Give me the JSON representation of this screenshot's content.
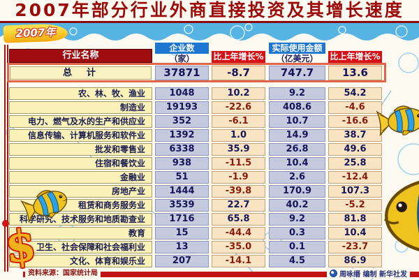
{
  "title": "2007年部分行业外商直接投资及其增长速度",
  "badge": "2007年",
  "table": {
    "headers": {
      "industry": "行业名称",
      "enterprises": "企业数",
      "enterprises_unit": "（家）",
      "growth1": "比上年增长%",
      "amount": "实际使用金额",
      "amount_unit": "（亿美元）",
      "growth2": "比上年增长%"
    },
    "total": {
      "name": "总　计",
      "enterprises": "37871",
      "growth1": "-8.7",
      "amount": "747.7",
      "growth2": "13.6"
    },
    "rows": [
      {
        "name": "农、林、牧、渔业",
        "enterprises": "1048",
        "growth1": "10.2",
        "amount": "9.2",
        "growth2": "54.2"
      },
      {
        "name": "制造业",
        "enterprises": "19193",
        "growth1": "-22.6",
        "amount": "408.6",
        "growth2": "-4.6"
      },
      {
        "name": "电力、燃气及水的生产和供应业",
        "enterprises": "352",
        "growth1": "-6.1",
        "amount": "10.7",
        "growth2": "-16.6"
      },
      {
        "name": "信息传输、计算机服务和软件业",
        "enterprises": "1392",
        "growth1": "1.0",
        "amount": "14.9",
        "growth2": "38.7"
      },
      {
        "name": "批发和零售业",
        "enterprises": "6338",
        "growth1": "35.9",
        "amount": "26.8",
        "grow2_note": "",
        "growth2": "49.6"
      },
      {
        "name": "住宿和餐饮业",
        "enterprises": "938",
        "growth1": "-11.5",
        "amount": "10.4",
        "growth2": "25.8"
      },
      {
        "name": "金融业",
        "enterprises": "51",
        "growth1": "-1.9",
        "amount": "2.6",
        "growth2": "-12.4"
      },
      {
        "name": "房地产业",
        "enterprises": "1444",
        "growth1": "-39.8",
        "amount": "170.9",
        "growth2": "107.3"
      },
      {
        "name": "租赁和商务服务业",
        "enterprises": "3539",
        "growth1": "22.7",
        "amount": "40.2",
        "growth2": "-5.2"
      },
      {
        "name": "科学研究、技术服务和地质勘查业",
        "enterprises": "1716",
        "growth1": "65.8",
        "amount": "9.2",
        "growth2": "81.8"
      },
      {
        "name": "教育",
        "enterprises": "15",
        "growth1": "-44.4",
        "amount": "0.3",
        "growth2": "10.4"
      },
      {
        "name": "卫生、社会保障和社会福利业",
        "enterprises": "13",
        "growth1": "-35.0",
        "amount": "0.1",
        "growth2": "-23.7"
      },
      {
        "name": "文化、体育和娱乐业",
        "enterprises": "207",
        "growth1": "-14.1",
        "amount": "4.5",
        "growth2": "86.9"
      }
    ]
  },
  "footer": {
    "source": "资料来源：国家统计局",
    "credit": "周咏缗 编制 新华社发"
  },
  "icons": {
    "fish": "tropical-fish-icon",
    "dollar": "dollar-sign-icon",
    "logo": "xinhua-logo-icon",
    "bubbles": "bubble-circles-decoration"
  },
  "colors": {
    "title_red": "#9c0a0a",
    "header_dark_red": "#9e0c10",
    "header_blue": "#1d76cf",
    "header_red": "#d41217",
    "band_blue": "#56b3e2",
    "name_bg": "#f8f2b8",
    "count_bg": "#c5cade",
    "growth_bg": "#f8e3c2",
    "total_border_orange": "#e2654a",
    "positive_navy": "#15155a",
    "negative_maroon": "#8b1a0e",
    "bar_red": "#c41111",
    "dollar_yellow": "#f0b21a"
  },
  "chart_data": {
    "type": "table",
    "title": "2007年部分行业外商直接投资及其增长速度",
    "columns": [
      "行业名称",
      "企业数（家）",
      "比上年增长%",
      "实际使用金额（亿美元）",
      "比上年增长%"
    ],
    "total_row": [
      "总计",
      37871,
      -8.7,
      747.7,
      13.6
    ],
    "rows": [
      [
        "农、林、牧、渔业",
        1048,
        10.2,
        9.2,
        54.2
      ],
      [
        "制造业",
        19193,
        -22.6,
        408.6,
        -4.6
      ],
      [
        "电力、燃气及水的生产和供应业",
        352,
        -6.1,
        10.7,
        -16.6
      ],
      [
        "信息传输、计算机服务和软件业",
        1392,
        1.0,
        14.9,
        38.7
      ],
      [
        "批发和零售业",
        6338,
        35.9,
        26.8,
        49.6
      ],
      [
        "住宿和餐饮业",
        938,
        -11.5,
        10.4,
        25.8
      ],
      [
        "金融业",
        51,
        -1.9,
        2.6,
        -12.4
      ],
      [
        "房地产业",
        1444,
        -39.8,
        170.9,
        107.3
      ],
      [
        "租赁和商务服务业",
        3539,
        22.7,
        40.2,
        -5.2
      ],
      [
        "科学研究、技术服务和地质勘查业",
        1716,
        65.8,
        9.2,
        81.8
      ],
      [
        "教育",
        15,
        -44.4,
        0.3,
        10.4
      ],
      [
        "卫生、社会保障和社会福利业",
        13,
        -35.0,
        0.1,
        -23.7
      ],
      [
        "文化、体育和娱乐业",
        207,
        -14.1,
        4.5,
        86.9
      ]
    ],
    "source": "资料来源：国家统计局",
    "credit": "周咏缗 编制 新华社发"
  }
}
